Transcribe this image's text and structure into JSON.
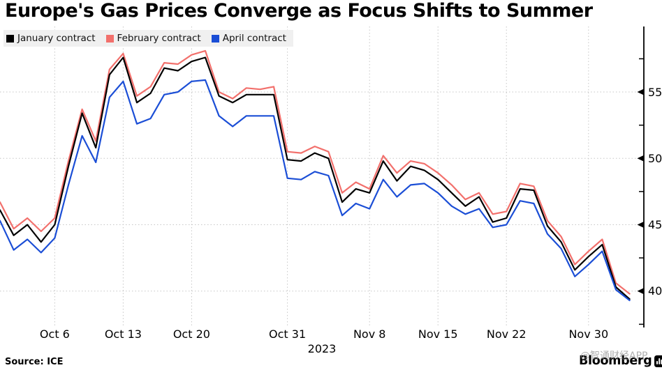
{
  "title": "Europe's Gas Prices Converge as Focus Shifts to Summer",
  "legend": [
    {
      "label": "January contract",
      "color": "#000000"
    },
    {
      "label": "February contract",
      "color": "#f2706c"
    },
    {
      "label": "April contract",
      "color": "#1b4ed6"
    }
  ],
  "source": "Source: ICE",
  "brand": "Bloomberg",
  "brand_logo": "bar-chart-icon",
  "watermark": "@智通财经APP",
  "colors": {
    "grid": "#c6c6c6",
    "axis": "#000000",
    "legend_bg": "#f0f0f0"
  },
  "chart_data": {
    "type": "line",
    "title": "Europe's Gas Prices Converge as Focus Shifts to Summer",
    "xlabel": "2023",
    "ylabel": "",
    "legend_position": "top-left",
    "grid": "dotted",
    "y_ticks": [
      40,
      45,
      50,
      55
    ],
    "y_minor_ticks": [
      37.5,
      42.5,
      47.5,
      52.5,
      57.5
    ],
    "ylim": [
      37.3,
      59.9
    ],
    "x_tick_labels": [
      "Oct 6",
      "Oct 13",
      "Oct 20",
      "Oct 31",
      "Nov 8",
      "Nov 15",
      "Nov 22",
      "Nov 30"
    ],
    "x_tick_indices": [
      4,
      9,
      14,
      21,
      27,
      32,
      37,
      43
    ],
    "year_label": "2023",
    "x": [
      "Oct 2",
      "Oct 3",
      "Oct 4",
      "Oct 5",
      "Oct 6",
      "Oct 9",
      "Oct 10",
      "Oct 11",
      "Oct 12",
      "Oct 13",
      "Oct 16",
      "Oct 17",
      "Oct 18",
      "Oct 19",
      "Oct 20",
      "Oct 23",
      "Oct 24",
      "Oct 25",
      "Oct 26",
      "Oct 27",
      "Oct 30",
      "Oct 31",
      "Nov 1",
      "Nov 2",
      "Nov 3",
      "Nov 6",
      "Nov 7",
      "Nov 8",
      "Nov 9",
      "Nov 10",
      "Nov 13",
      "Nov 14",
      "Nov 15",
      "Nov 16",
      "Nov 17",
      "Nov 20",
      "Nov 21",
      "Nov 22",
      "Nov 23",
      "Nov 24",
      "Nov 27",
      "Nov 28",
      "Nov 29",
      "Nov 30",
      "Dec 1",
      "Dec 4",
      "Dec 5"
    ],
    "series": [
      {
        "name": "February contract",
        "color": "#f2706c",
        "values": [
          46.7,
          44.7,
          45.5,
          44.5,
          45.5,
          49.8,
          53.7,
          51.3,
          56.7,
          57.9,
          54.7,
          55.4,
          57.2,
          57.1,
          57.8,
          58.1,
          55.0,
          54.5,
          55.3,
          55.2,
          55.4,
          50.5,
          50.4,
          50.9,
          50.5,
          47.4,
          48.2,
          47.7,
          50.2,
          48.9,
          49.8,
          49.6,
          48.9,
          48.0,
          46.9,
          47.4,
          45.8,
          46.0,
          48.1,
          47.9,
          45.3,
          44.1,
          42.0,
          43.0,
          43.9,
          40.6,
          39.8
        ]
      },
      {
        "name": "January contract",
        "color": "#000000",
        "values": [
          46.1,
          44.2,
          45.0,
          43.7,
          45.0,
          49.4,
          53.4,
          50.8,
          56.3,
          57.6,
          54.2,
          54.9,
          56.8,
          56.6,
          57.3,
          57.6,
          54.7,
          54.2,
          54.8,
          54.8,
          54.8,
          49.9,
          49.8,
          50.4,
          50.0,
          46.7,
          47.7,
          47.4,
          49.8,
          48.3,
          49.4,
          49.1,
          48.4,
          47.4,
          46.4,
          47.1,
          45.2,
          45.5,
          47.7,
          47.6,
          44.9,
          43.7,
          41.6,
          42.6,
          43.5,
          40.3,
          39.4
        ]
      },
      {
        "name": "April contract",
        "color": "#1b4ed6",
        "values": [
          45.3,
          43.1,
          43.9,
          42.9,
          44.0,
          48.0,
          51.7,
          49.7,
          54.6,
          55.8,
          52.6,
          53.0,
          54.8,
          55.0,
          55.8,
          55.9,
          53.2,
          52.4,
          53.2,
          53.2,
          53.2,
          48.5,
          48.4,
          49.0,
          48.7,
          45.7,
          46.6,
          46.2,
          48.4,
          47.1,
          48.0,
          48.1,
          47.4,
          46.4,
          45.8,
          46.2,
          44.8,
          45.0,
          46.8,
          46.6,
          44.3,
          43.2,
          41.1,
          42.0,
          43.0,
          40.1,
          39.3
        ]
      }
    ]
  }
}
